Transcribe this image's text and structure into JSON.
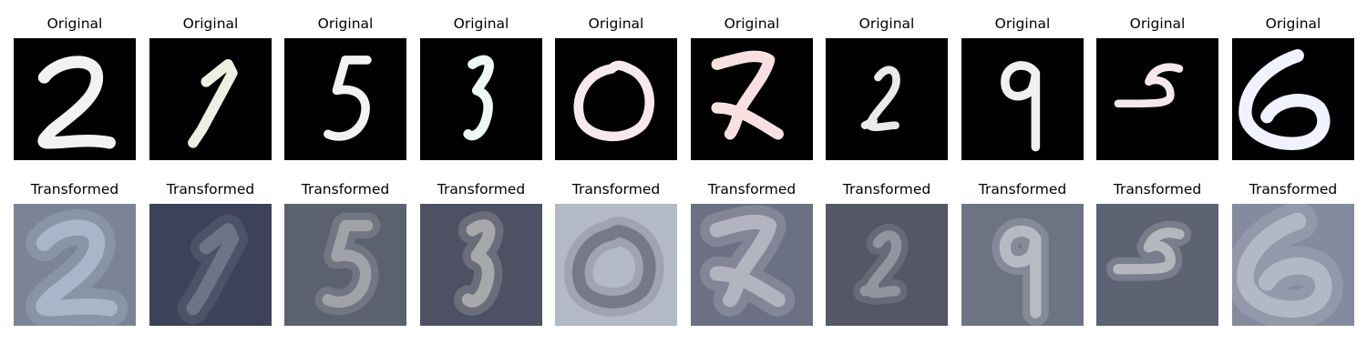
{
  "labels": {
    "top": "Original",
    "bottom": "Transformed"
  },
  "original_panels": [
    {
      "digit": "2",
      "ink": "#f2f2f2",
      "background": "#000000"
    },
    {
      "digit": "1",
      "ink": "#eeeee2",
      "background": "#000000"
    },
    {
      "digit": "5",
      "ink": "#f2f2f2",
      "background": "#000000"
    },
    {
      "digit": "3",
      "ink": "#eef6f6",
      "background": "#000000"
    },
    {
      "digit": "0",
      "ink": "#f6e8ee",
      "background": "#000000"
    },
    {
      "digit": "7",
      "ink": "#f8e0e2",
      "background": "#000000"
    },
    {
      "digit": "2",
      "ink": "#eaeaea",
      "background": "#000000"
    },
    {
      "digit": "9",
      "ink": "#f0f0f0",
      "background": "#000000"
    },
    {
      "digit": "5",
      "ink": "#f4e8ee",
      "background": "#000000"
    },
    {
      "digit": "6",
      "ink": "#f0f2ff",
      "background": "#000000"
    }
  ],
  "transformed_panels": [
    {
      "digit": "2",
      "ink": "#b9c3d8",
      "background": "#7b8497"
    },
    {
      "digit": "1",
      "ink": "#7d8395",
      "background": "#3d4259"
    },
    {
      "digit": "5",
      "ink": "#b2b6b8",
      "background": "#5c6170"
    },
    {
      "digit": "3",
      "ink": "#c2c2c0",
      "background": "#4d5163"
    },
    {
      "digit": "0",
      "ink": "#646875",
      "background": "#b4b9c6"
    },
    {
      "digit": "7",
      "ink": "#c6c9d2",
      "background": "#6b7182"
    },
    {
      "digit": "2",
      "ink": "#a4a6b1",
      "background": "#535766"
    },
    {
      "digit": "9",
      "ink": "#cccfd6",
      "background": "#6d7383"
    },
    {
      "digit": "5",
      "ink": "#cfd0d3",
      "background": "#5e6374"
    },
    {
      "digit": "6",
      "ink": "#c0c4d0",
      "background": "#858b9e"
    }
  ]
}
